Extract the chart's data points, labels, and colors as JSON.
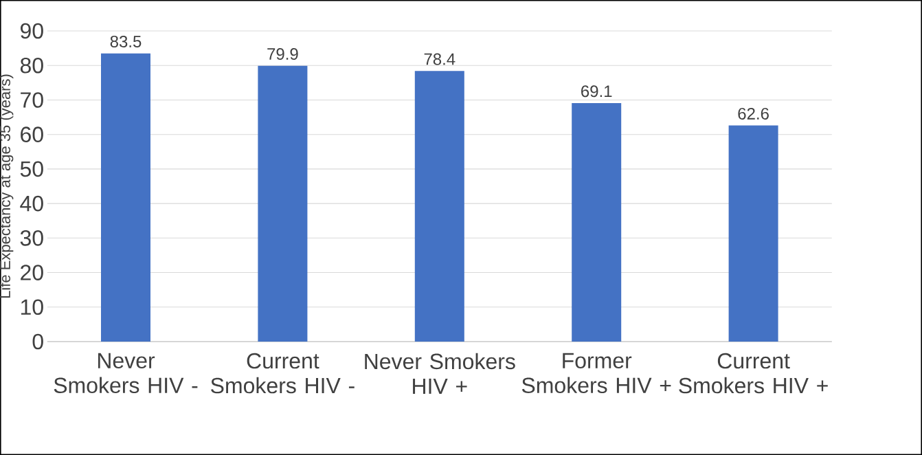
{
  "chart_data": {
    "type": "bar",
    "ylabel": "Life Expectancy at age 35 (years)",
    "categories": [
      "Never Smokers HIV -",
      "Current Smokers HIV -",
      "Never Smokers HIV +",
      "Former Smokers HIV +",
      "Current Smokers HIV +"
    ],
    "values": [
      83.5,
      79.9,
      78.4,
      69.1,
      62.6
    ],
    "color": "#4472c4",
    "ylim": [
      0,
      90
    ],
    "yticks": [
      0,
      10,
      20,
      30,
      40,
      50,
      60,
      70,
      80,
      90
    ],
    "grid": "y",
    "data_labels": true
  }
}
